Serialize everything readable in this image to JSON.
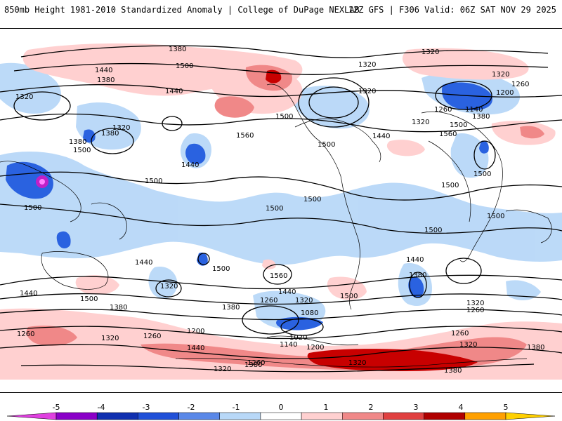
{
  "header": {
    "title_left": "850mb Height 1981-2010 Standardized Anomaly | College of DuPage NEXLAB",
    "title_right": "12Z GFS | F306 Valid: 06Z SAT NOV 29 2025"
  },
  "colorbar": {
    "ticks": [
      "-5",
      "-4",
      "-3",
      "-2",
      "-1",
      "0",
      "1",
      "2",
      "3",
      "4",
      "5"
    ],
    "colors": [
      "#e040e0",
      "#8a00c8",
      "#1030b0",
      "#2050d8",
      "#5a88e8",
      "#b8d8f8",
      "#ffffff",
      "#ffd0d0",
      "#f08888",
      "#e04040",
      "#b00000",
      "#ffa000",
      "#ffd000"
    ]
  },
  "map": {
    "contour_labels": [
      "1380",
      "1320",
      "1320",
      "1440",
      "1500",
      "1380",
      "1320",
      "1260",
      "1320",
      "1200",
      "1380",
      "1440",
      "1320",
      "1380",
      "1320",
      "1260",
      "1140",
      "1500",
      "1440",
      "1500",
      "1560",
      "1320",
      "1380",
      "1560",
      "1440",
      "1500",
      "1500",
      "1500",
      "1500",
      "1500",
      "1500",
      "1500",
      "1500",
      "1500",
      "1440",
      "1500",
      "1560",
      "1500",
      "1440",
      "1320",
      "1380",
      "1440",
      "1500",
      "1380",
      "1260",
      "1320",
      "1080",
      "1020",
      "1140",
      "1200",
      "1440",
      "1380",
      "1320",
      "1260",
      "1260",
      "1320",
      "1260",
      "1200",
      "1260",
      "1320",
      "1380",
      "1320",
      "1380",
      "1500",
      "1320",
      "1380",
      "1440",
      "1260"
    ]
  }
}
